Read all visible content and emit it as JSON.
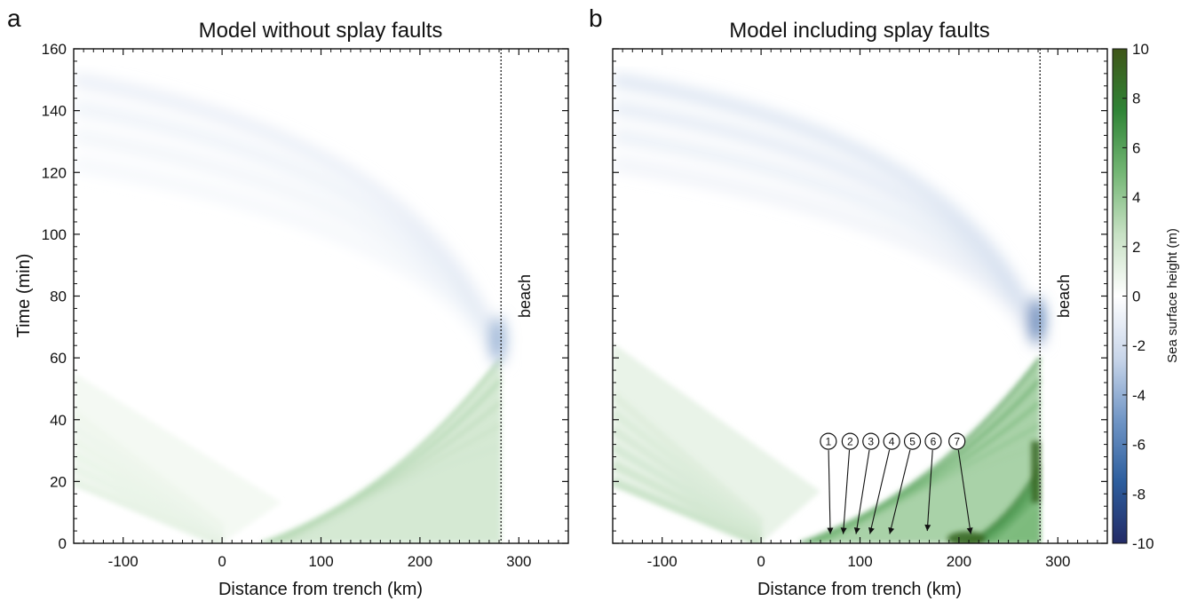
{
  "chart_data": [
    {
      "type": "heatmap",
      "panel_letter": "a",
      "title": "Model without splay faults",
      "xlabel": "Distance from trench (km)",
      "ylabel": "Time (min)",
      "xlim": [
        -150,
        350
      ],
      "ylim": [
        0,
        160
      ],
      "x_ticks": [
        -100,
        0,
        100,
        200,
        300
      ],
      "y_ticks": [
        0,
        20,
        40,
        60,
        80,
        100,
        120,
        140,
        160
      ],
      "beach_x": 282,
      "beach_label": "beach",
      "features": [
        {
          "kind": "seaward-wave",
          "sign": "positive",
          "start": [
            0,
            0
          ],
          "extends_to": [
            -150,
            20
          ],
          "band_width_min": 22,
          "amplitude_m": 1.5
        },
        {
          "kind": "landward-wave",
          "sign": "positive",
          "start": [
            40,
            0
          ],
          "arrives": [
            282,
            60
          ],
          "amplitude_m": 4
        },
        {
          "kind": "reflected-wave",
          "sign": "negative",
          "vertex": [
            282,
            66
          ],
          "extends_to": [
            -150,
            150
          ],
          "amplitude_m": -4
        }
      ],
      "splay_markers": []
    },
    {
      "type": "heatmap",
      "panel_letter": "b",
      "title": "Model including splay faults",
      "xlabel": "Distance from trench (km)",
      "ylabel": "",
      "xlim": [
        -150,
        350
      ],
      "ylim": [
        0,
        160
      ],
      "x_ticks": [
        -100,
        0,
        100,
        200,
        300
      ],
      "y_ticks": [
        0,
        20,
        40,
        60,
        80,
        100,
        120,
        140,
        160
      ],
      "beach_x": 282,
      "beach_label": "beach",
      "features": [
        {
          "kind": "seaward-wave",
          "sign": "positive",
          "start": [
            0,
            0
          ],
          "extends_to": [
            -150,
            20
          ],
          "band_width_min": 28,
          "amplitude_m": 3
        },
        {
          "kind": "landward-wave",
          "sign": "positive",
          "start": [
            40,
            0
          ],
          "arrives": [
            282,
            60
          ],
          "amplitude_m": 7
        },
        {
          "kind": "splay-source-wave",
          "sign": "positive",
          "start": [
            208,
            0
          ],
          "arrives": [
            282,
            25
          ],
          "amplitude_m": 9
        },
        {
          "kind": "reflected-wave",
          "sign": "negative",
          "vertex": [
            282,
            72
          ],
          "extends_to": [
            -150,
            150
          ],
          "amplitude_m": -6
        }
      ],
      "splay_markers": [
        {
          "label": "1",
          "label_at": [
            68,
            33
          ],
          "points_to": [
            70,
            3
          ]
        },
        {
          "label": "2",
          "label_at": [
            90,
            33
          ],
          "points_to": [
            83,
            3
          ]
        },
        {
          "label": "3",
          "label_at": [
            111,
            33
          ],
          "points_to": [
            96,
            3
          ]
        },
        {
          "label": "4",
          "label_at": [
            132,
            33
          ],
          "points_to": [
            110,
            3
          ]
        },
        {
          "label": "5",
          "label_at": [
            153,
            33
          ],
          "points_to": [
            130,
            3
          ]
        },
        {
          "label": "6",
          "label_at": [
            174,
            33
          ],
          "points_to": [
            168,
            4
          ]
        },
        {
          "label": "7",
          "label_at": [
            198,
            33
          ],
          "points_to": [
            212,
            3
          ]
        }
      ]
    }
  ],
  "colorbar": {
    "label": "Sea surface height (m)",
    "min": -10,
    "max": 10,
    "ticks": [
      -10,
      -8,
      -6,
      -4,
      -2,
      0,
      2,
      4,
      6,
      8,
      10
    ],
    "colors": [
      "#232b66",
      "#2d5e9e",
      "#7196c6",
      "#c9d6ea",
      "#ffffff",
      "#c7e1c4",
      "#73b674",
      "#2f8436",
      "#3f5618"
    ]
  }
}
